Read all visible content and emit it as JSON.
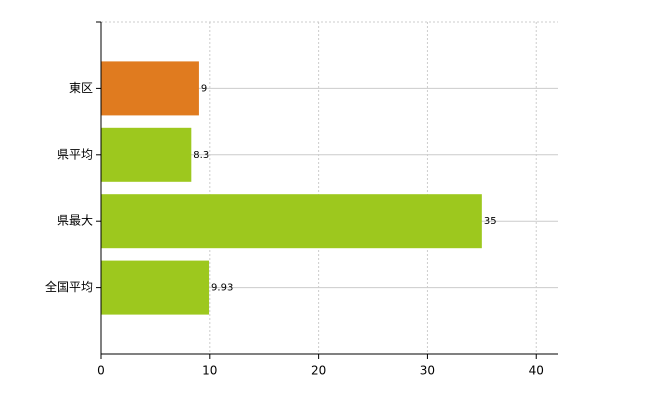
{
  "chart_data": {
    "type": "bar",
    "orientation": "horizontal",
    "categories": [
      "東区",
      "県平均",
      "県最大",
      "全国平均"
    ],
    "values": [
      9,
      8.3,
      35,
      9.93
    ],
    "colors": [
      "#e07b1f",
      "#9dc81e",
      "#9dc81e",
      "#9dc81e"
    ],
    "xlim": [
      0,
      42
    ],
    "xticks": [
      0,
      10,
      20,
      30,
      40
    ],
    "grid": true
  }
}
